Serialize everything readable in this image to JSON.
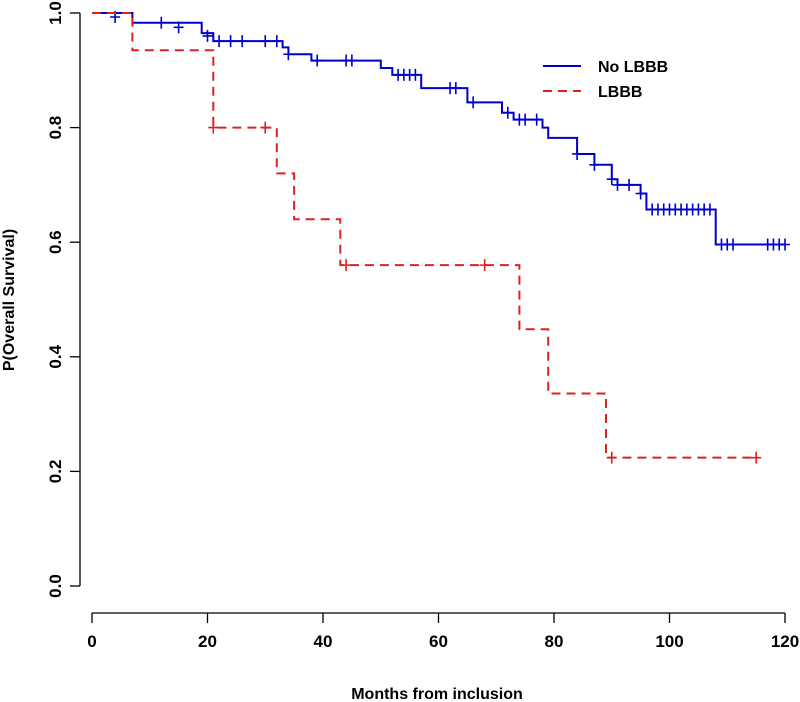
{
  "chart_data": {
    "type": "line",
    "subtype": "kaplan-meier",
    "title": "",
    "xlabel": "Months from inclusion",
    "ylabel": "P(Overall Survival)",
    "xlim": [
      0,
      120
    ],
    "ylim": [
      0,
      1
    ],
    "xticks": [
      0,
      20,
      40,
      60,
      80,
      100,
      120
    ],
    "xtick_labels": [
      "0",
      "20",
      "40",
      "60",
      "80",
      "100",
      "120"
    ],
    "yticks": [
      0,
      0.2,
      0.4,
      0.6,
      0.8,
      1
    ],
    "ytick_labels": [
      "0.0",
      "0.2",
      "0.4",
      "0.6",
      "0.8",
      "1.0"
    ],
    "legend_position": "top-right",
    "series": [
      {
        "name": "No LBBB",
        "color": "#0000cc",
        "line_style": "solid",
        "steps": [
          [
            0,
            1.0
          ],
          [
            7,
            0.983
          ],
          [
            19,
            0.965
          ],
          [
            21,
            0.951
          ],
          [
            33,
            0.94
          ],
          [
            34,
            0.928
          ],
          [
            38,
            0.917
          ],
          [
            50,
            0.904
          ],
          [
            52,
            0.892
          ],
          [
            57,
            0.869
          ],
          [
            65,
            0.844
          ],
          [
            71,
            0.826
          ],
          [
            73,
            0.814
          ],
          [
            78,
            0.8
          ],
          [
            79,
            0.782
          ],
          [
            84,
            0.754
          ],
          [
            87,
            0.735
          ],
          [
            90,
            0.71
          ],
          [
            91,
            0.7
          ],
          [
            95,
            0.685
          ],
          [
            96,
            0.657
          ],
          [
            108,
            0.596
          ],
          [
            120,
            0.596
          ]
        ],
        "censored": [
          [
            4,
            0.993
          ],
          [
            12,
            0.983
          ],
          [
            15,
            0.975
          ],
          [
            20,
            0.96
          ],
          [
            22,
            0.951
          ],
          [
            24,
            0.951
          ],
          [
            26,
            0.951
          ],
          [
            30,
            0.951
          ],
          [
            32,
            0.951
          ],
          [
            34,
            0.928
          ],
          [
            39,
            0.917
          ],
          [
            44,
            0.917
          ],
          [
            45,
            0.917
          ],
          [
            53,
            0.892
          ],
          [
            54,
            0.892
          ],
          [
            55,
            0.892
          ],
          [
            56,
            0.892
          ],
          [
            62,
            0.869
          ],
          [
            63,
            0.869
          ],
          [
            66,
            0.844
          ],
          [
            72,
            0.826
          ],
          [
            74,
            0.814
          ],
          [
            75,
            0.814
          ],
          [
            77,
            0.814
          ],
          [
            84,
            0.754
          ],
          [
            87,
            0.735
          ],
          [
            90,
            0.71
          ],
          [
            91,
            0.7
          ],
          [
            93,
            0.7
          ],
          [
            95,
            0.685
          ],
          [
            97,
            0.657
          ],
          [
            98,
            0.657
          ],
          [
            99,
            0.657
          ],
          [
            100,
            0.657
          ],
          [
            101,
            0.657
          ],
          [
            102,
            0.657
          ],
          [
            103,
            0.657
          ],
          [
            104,
            0.657
          ],
          [
            105,
            0.657
          ],
          [
            106,
            0.657
          ],
          [
            107,
            0.657
          ],
          [
            109,
            0.596
          ],
          [
            110,
            0.596
          ],
          [
            111,
            0.596
          ],
          [
            117,
            0.596
          ],
          [
            118,
            0.596
          ],
          [
            119,
            0.596
          ],
          [
            120,
            0.596
          ]
        ]
      },
      {
        "name": "LBBB",
        "color": "#dd2222",
        "line_style": "dashed",
        "steps": [
          [
            0,
            1.0
          ],
          [
            7,
            0.935
          ],
          [
            21,
            0.8
          ],
          [
            32,
            0.72
          ],
          [
            35,
            0.64
          ],
          [
            43,
            0.56
          ],
          [
            74,
            0.448
          ],
          [
            79,
            0.336
          ],
          [
            89,
            0.224
          ],
          [
            115,
            0.224
          ]
        ],
        "censored": [
          [
            21,
            0.8
          ],
          [
            30,
            0.8
          ],
          [
            44,
            0.56
          ],
          [
            68,
            0.56
          ],
          [
            90,
            0.224
          ],
          [
            115,
            0.224
          ]
        ]
      }
    ]
  }
}
